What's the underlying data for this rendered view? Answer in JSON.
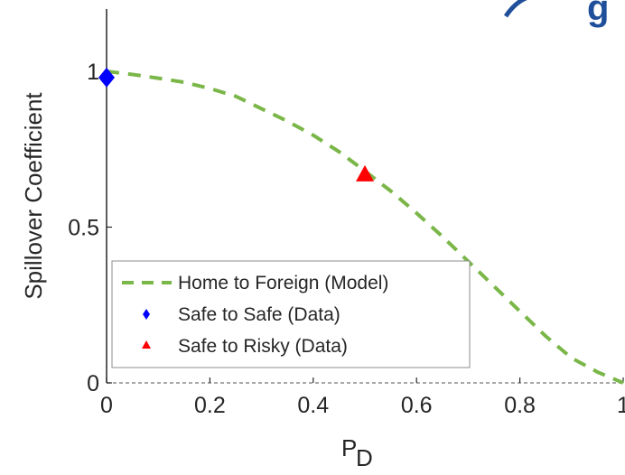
{
  "chart_data": {
    "type": "line",
    "xlabel": "P",
    "xlabel_subscript": "D",
    "ylabel": "Spillover Coefficient",
    "xlim": [
      0,
      1
    ],
    "ylim": [
      0,
      1.2
    ],
    "x_ticks": [
      "0",
      "0.2",
      "0.4",
      "0.6",
      "0.8",
      "1"
    ],
    "y_ticks": [
      "0",
      "0.5",
      "1"
    ],
    "grid": false,
    "legend_position": "bottom-left",
    "colors": {
      "model": "#7ab648",
      "safe": "#0000ff",
      "risky": "#ff0000",
      "axis": "#262626",
      "zero_line": "#8c8c8c"
    },
    "series": [
      {
        "name": "Home to Foreign (Model)",
        "style": "dashed-line",
        "x": [
          0,
          0.05,
          0.1,
          0.15,
          0.2,
          0.25,
          0.3,
          0.35,
          0.4,
          0.45,
          0.5,
          0.55,
          0.6,
          0.65,
          0.7,
          0.75,
          0.8,
          0.85,
          0.9,
          0.95,
          1.0
        ],
        "y": [
          1.0,
          0.99,
          0.978,
          0.965,
          0.945,
          0.92,
          0.88,
          0.84,
          0.795,
          0.742,
          0.68,
          0.616,
          0.545,
          0.47,
          0.39,
          0.31,
          0.23,
          0.15,
          0.08,
          0.035,
          0.0
        ]
      },
      {
        "name": "Safe to Safe (Data)",
        "style": "diamond-marker",
        "x": [
          0
        ],
        "y": [
          0.98
        ]
      },
      {
        "name": "Safe to Risky (Data)",
        "style": "triangle-marker",
        "x": [
          0.5
        ],
        "y": [
          0.67
        ]
      }
    ]
  },
  "top_clipped_text": "g"
}
